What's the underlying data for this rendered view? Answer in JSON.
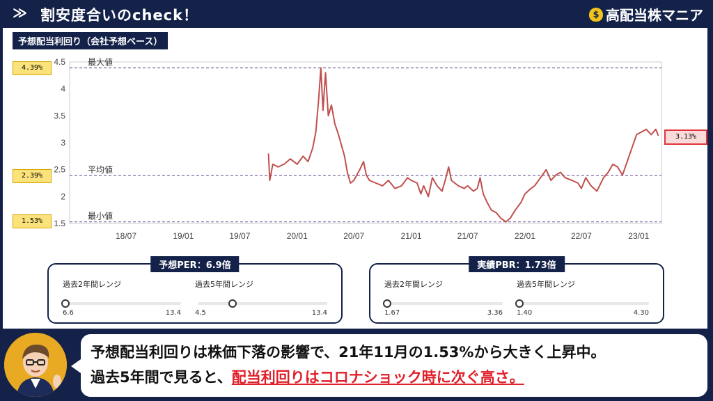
{
  "header": {
    "chevron": "≫",
    "title": "割安度合いのcheck！",
    "brand": "高配当株マニア",
    "brand_icon": "money-bag-icon"
  },
  "chart_title": "予想配当利回り（会社予想ベース）",
  "badges": {
    "max": "4.39%",
    "avg": "2.39%",
    "min": "1.53%",
    "current": "3.13%"
  },
  "chart_data": {
    "type": "line",
    "title": "予想配当利回り（会社予想ベース）",
    "x_ticks": [
      "18/07",
      "19/01",
      "19/07",
      "20/01",
      "20/07",
      "21/01",
      "21/07",
      "22/01",
      "22/07",
      "23/01"
    ],
    "y_ticks": [
      "1.5",
      "2",
      "2.5",
      "3",
      "3.5",
      "4",
      "4.5"
    ],
    "ylim": [
      1.5,
      4.5
    ],
    "x_range": [
      "2018-01",
      "2023-03"
    ],
    "reference_lines": [
      {
        "label": "最大値",
        "value": 4.39
      },
      {
        "label": "平均値",
        "value": 2.39
      },
      {
        "label": "最小値",
        "value": 1.53
      }
    ],
    "series": [
      {
        "color": "#c0504d",
        "points": [
          [
            "2019-10-01",
            2.8
          ],
          [
            "2019-10-05",
            2.3
          ],
          [
            "2019-10-15",
            2.6
          ],
          [
            "2019-11-01",
            2.55
          ],
          [
            "2019-11-20",
            2.6
          ],
          [
            "2019-12-10",
            2.7
          ],
          [
            "2020-01-01",
            2.6
          ],
          [
            "2020-01-20",
            2.75
          ],
          [
            "2020-02-05",
            2.65
          ],
          [
            "2020-02-20",
            2.9
          ],
          [
            "2020-03-01",
            3.2
          ],
          [
            "2020-03-10",
            3.8
          ],
          [
            "2020-03-17",
            4.39
          ],
          [
            "2020-03-24",
            3.6
          ],
          [
            "2020-04-01",
            4.3
          ],
          [
            "2020-04-10",
            3.5
          ],
          [
            "2020-04-20",
            3.7
          ],
          [
            "2020-05-01",
            3.35
          ],
          [
            "2020-05-10",
            3.2
          ],
          [
            "2020-05-20",
            3.0
          ],
          [
            "2020-06-01",
            2.75
          ],
          [
            "2020-06-10",
            2.45
          ],
          [
            "2020-06-20",
            2.25
          ],
          [
            "2020-07-01",
            2.3
          ],
          [
            "2020-07-20",
            2.5
          ],
          [
            "2020-08-01",
            2.65
          ],
          [
            "2020-08-10",
            2.4
          ],
          [
            "2020-08-20",
            2.3
          ],
          [
            "2020-09-10",
            2.25
          ],
          [
            "2020-10-01",
            2.2
          ],
          [
            "2020-10-20",
            2.3
          ],
          [
            "2020-11-10",
            2.15
          ],
          [
            "2020-12-01",
            2.2
          ],
          [
            "2020-12-20",
            2.35
          ],
          [
            "2021-01-01",
            2.3
          ],
          [
            "2021-01-20",
            2.25
          ],
          [
            "2021-02-01",
            2.05
          ],
          [
            "2021-02-10",
            2.2
          ],
          [
            "2021-02-25",
            2.0
          ],
          [
            "2021-03-10",
            2.35
          ],
          [
            "2021-03-25",
            2.2
          ],
          [
            "2021-04-10",
            2.1
          ],
          [
            "2021-04-20",
            2.3
          ],
          [
            "2021-05-01",
            2.55
          ],
          [
            "2021-05-10",
            2.3
          ],
          [
            "2021-06-01",
            2.2
          ],
          [
            "2021-06-20",
            2.15
          ],
          [
            "2021-07-01",
            2.2
          ],
          [
            "2021-07-20",
            2.1
          ],
          [
            "2021-08-01",
            2.15
          ],
          [
            "2021-08-10",
            2.35
          ],
          [
            "2021-08-20",
            2.05
          ],
          [
            "2021-09-01",
            1.9
          ],
          [
            "2021-09-15",
            1.75
          ],
          [
            "2021-10-01",
            1.7
          ],
          [
            "2021-10-15",
            1.6
          ],
          [
            "2021-11-01",
            1.53
          ],
          [
            "2021-11-15",
            1.6
          ],
          [
            "2021-12-01",
            1.75
          ],
          [
            "2021-12-20",
            1.9
          ],
          [
            "2022-01-01",
            2.05
          ],
          [
            "2022-01-20",
            2.15
          ],
          [
            "2022-02-01",
            2.2
          ],
          [
            "2022-02-20",
            2.35
          ],
          [
            "2022-03-10",
            2.5
          ],
          [
            "2022-03-25",
            2.3
          ],
          [
            "2022-04-10",
            2.4
          ],
          [
            "2022-04-25",
            2.45
          ],
          [
            "2022-05-10",
            2.35
          ],
          [
            "2022-06-01",
            2.3
          ],
          [
            "2022-06-20",
            2.25
          ],
          [
            "2022-07-01",
            2.15
          ],
          [
            "2022-07-15",
            2.35
          ],
          [
            "2022-08-01",
            2.2
          ],
          [
            "2022-08-20",
            2.1
          ],
          [
            "2022-09-10",
            2.35
          ],
          [
            "2022-09-25",
            2.45
          ],
          [
            "2022-10-10",
            2.6
          ],
          [
            "2022-10-25",
            2.55
          ],
          [
            "2022-11-10",
            2.4
          ],
          [
            "2022-11-25",
            2.65
          ],
          [
            "2022-12-10",
            2.9
          ],
          [
            "2022-12-25",
            3.15
          ],
          [
            "2023-01-10",
            3.2
          ],
          [
            "2023-01-25",
            3.25
          ],
          [
            "2023-02-10",
            3.15
          ],
          [
            "2023-02-25",
            3.25
          ],
          [
            "2023-03-05",
            3.13
          ]
        ]
      }
    ]
  },
  "per": {
    "label": "予想PER：6.9倍",
    "r2": {
      "name": "過去2年間レンジ",
      "min": "6.6",
      "max": "13.4",
      "value": 0.0
    },
    "r5": {
      "name": "過去5年間レンジ",
      "min": "4.5",
      "max": "13.4",
      "value": 0.27
    }
  },
  "pbr": {
    "label": "実績PBR：1.73倍",
    "r2": {
      "name": "過去2年間レンジ",
      "min": "1.67",
      "max": "3.36",
      "value": 0.0
    },
    "r5": {
      "name": "過去5年間レンジ",
      "min": "1.40",
      "max": "4.30",
      "value": 0.0
    }
  },
  "speech": {
    "line1": "予想配当利回りは株価下落の影響で、21年11月の1.53%から大きく上昇中。",
    "line2_pre": "過去5年間で見ると、",
    "line2_hl": "配当利回りはコロナショック時に次ぐ高さ。"
  }
}
